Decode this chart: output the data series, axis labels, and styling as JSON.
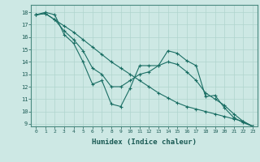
{
  "xlabel": "Humidex (Indice chaleur)",
  "background_color": "#cde8e4",
  "grid_color": "#b0d4ce",
  "line_color": "#1a6e64",
  "xlim": [
    -0.5,
    23.5
  ],
  "ylim": [
    8.8,
    18.6
  ],
  "yticks": [
    9,
    10,
    11,
    12,
    13,
    14,
    15,
    16,
    17,
    18
  ],
  "xticks": [
    0,
    1,
    2,
    3,
    4,
    5,
    6,
    7,
    8,
    9,
    10,
    11,
    12,
    13,
    14,
    15,
    16,
    17,
    18,
    19,
    20,
    21,
    22,
    23
  ],
  "series": [
    [
      17.8,
      18.0,
      17.8,
      16.2,
      15.5,
      14.0,
      12.2,
      12.5,
      10.6,
      10.4,
      11.9,
      13.7,
      13.7,
      13.7,
      14.9,
      14.7,
      14.1,
      13.7,
      11.2,
      11.3,
      10.3,
      9.5,
      9.1,
      8.8
    ],
    [
      17.8,
      17.9,
      17.4,
      16.5,
      15.8,
      14.9,
      13.5,
      13.0,
      12.0,
      12.0,
      12.5,
      13.0,
      13.2,
      13.7,
      14.0,
      13.8,
      13.2,
      12.5,
      11.5,
      11.0,
      10.5,
      9.8,
      9.2,
      8.8
    ],
    [
      17.8,
      17.9,
      17.4,
      16.9,
      16.4,
      15.8,
      15.2,
      14.6,
      14.0,
      13.5,
      13.0,
      12.5,
      12.0,
      11.5,
      11.1,
      10.7,
      10.4,
      10.2,
      10.0,
      9.8,
      9.6,
      9.4,
      9.2,
      8.8
    ]
  ]
}
